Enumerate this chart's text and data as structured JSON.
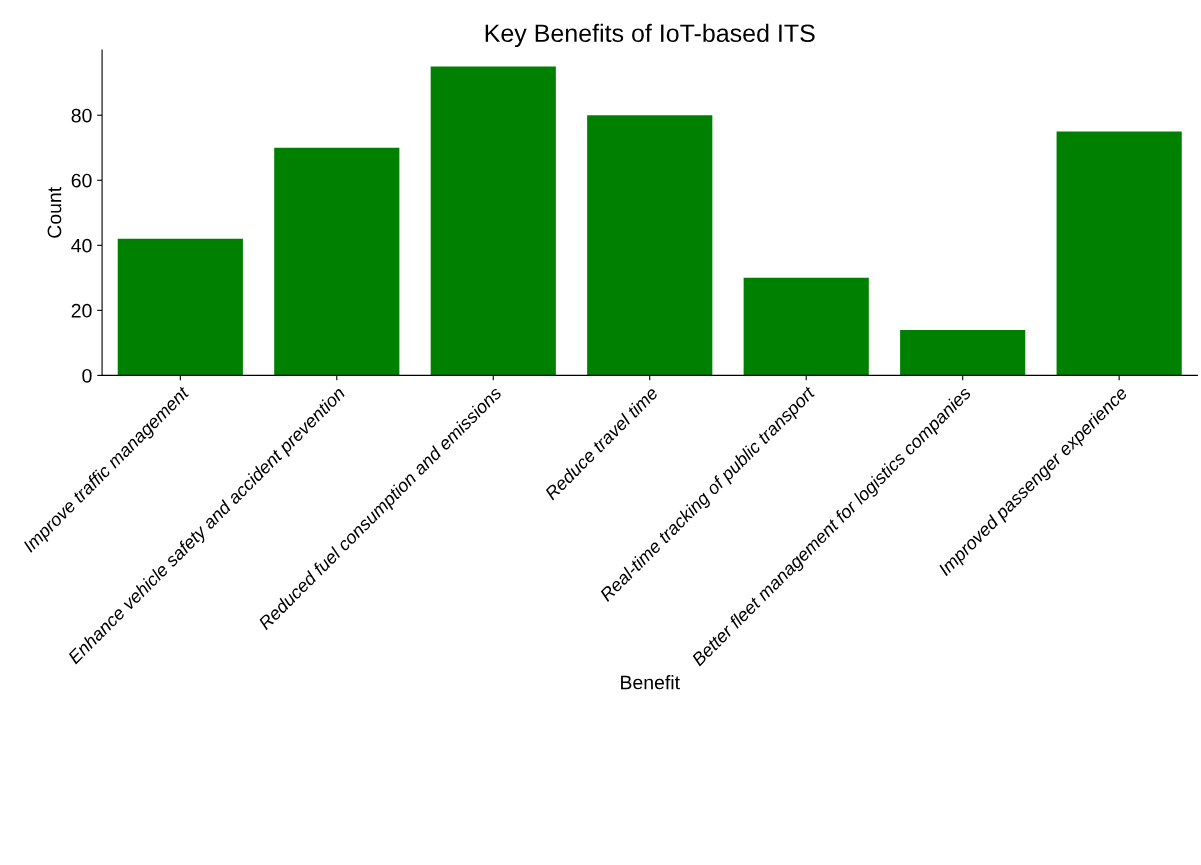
{
  "chart_data": {
    "type": "bar",
    "title": "Key Benefits of IoT-based ITS",
    "xlabel": "Benefit",
    "ylabel": "Count",
    "categories": [
      "Improve traffic management",
      "Enhance vehicle safety and accident prevention",
      "Reduced fuel consumption and emissions",
      "Reduce travel time",
      "Real-time tracking of public transport",
      "Better fleet management for logistics companies",
      "Improved passenger experience"
    ],
    "values": [
      42,
      70,
      95,
      80,
      30,
      14,
      75
    ],
    "color": "#008000",
    "ylim": [
      0,
      100
    ],
    "yticks": [
      0,
      20,
      40,
      60,
      80
    ],
    "grid": false
  }
}
